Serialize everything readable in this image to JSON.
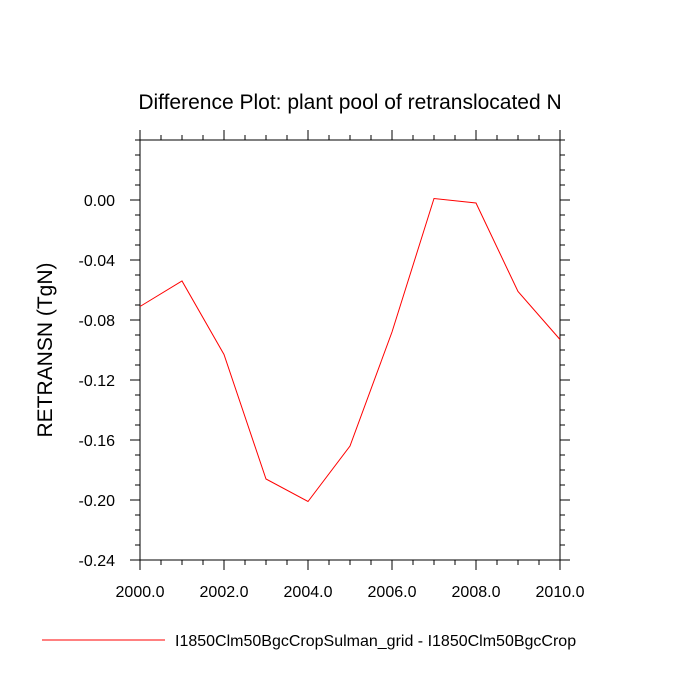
{
  "chart_data": {
    "type": "line",
    "title": "Difference Plot: plant pool of retranslocated N",
    "xlabel": "",
    "ylabel": "RETRANSN  (TgN)",
    "xlim": [
      2000,
      2010
    ],
    "ylim": [
      -0.24,
      0.04
    ],
    "x_ticks": [
      2000,
      2002,
      2004,
      2006,
      2008,
      2010
    ],
    "x_tick_labels": [
      "2000.0",
      "2002.0",
      "2004.0",
      "2006.0",
      "2008.0",
      "2010.0"
    ],
    "y_ticks": [
      0.0,
      -0.04,
      -0.08,
      -0.12,
      -0.16,
      -0.2,
      -0.24
    ],
    "y_tick_labels": [
      "0.00",
      "-0.04",
      "-0.08",
      "-0.12",
      "-0.16",
      "-0.20",
      "-0.24"
    ],
    "grid": false,
    "legend_position": "bottom",
    "x": [
      2000,
      2001,
      2002,
      2003,
      2004,
      2005,
      2006,
      2007,
      2008,
      2009,
      2010
    ],
    "series": [
      {
        "name": "I1850Clm50BgcCropSulman_grid - I1850Clm50BgcCrop",
        "color": "#ff0000",
        "values": [
          -0.071,
          -0.054,
          -0.103,
          -0.186,
          -0.201,
          -0.164,
          -0.088,
          0.001,
          -0.002,
          -0.061,
          -0.093
        ]
      }
    ]
  }
}
